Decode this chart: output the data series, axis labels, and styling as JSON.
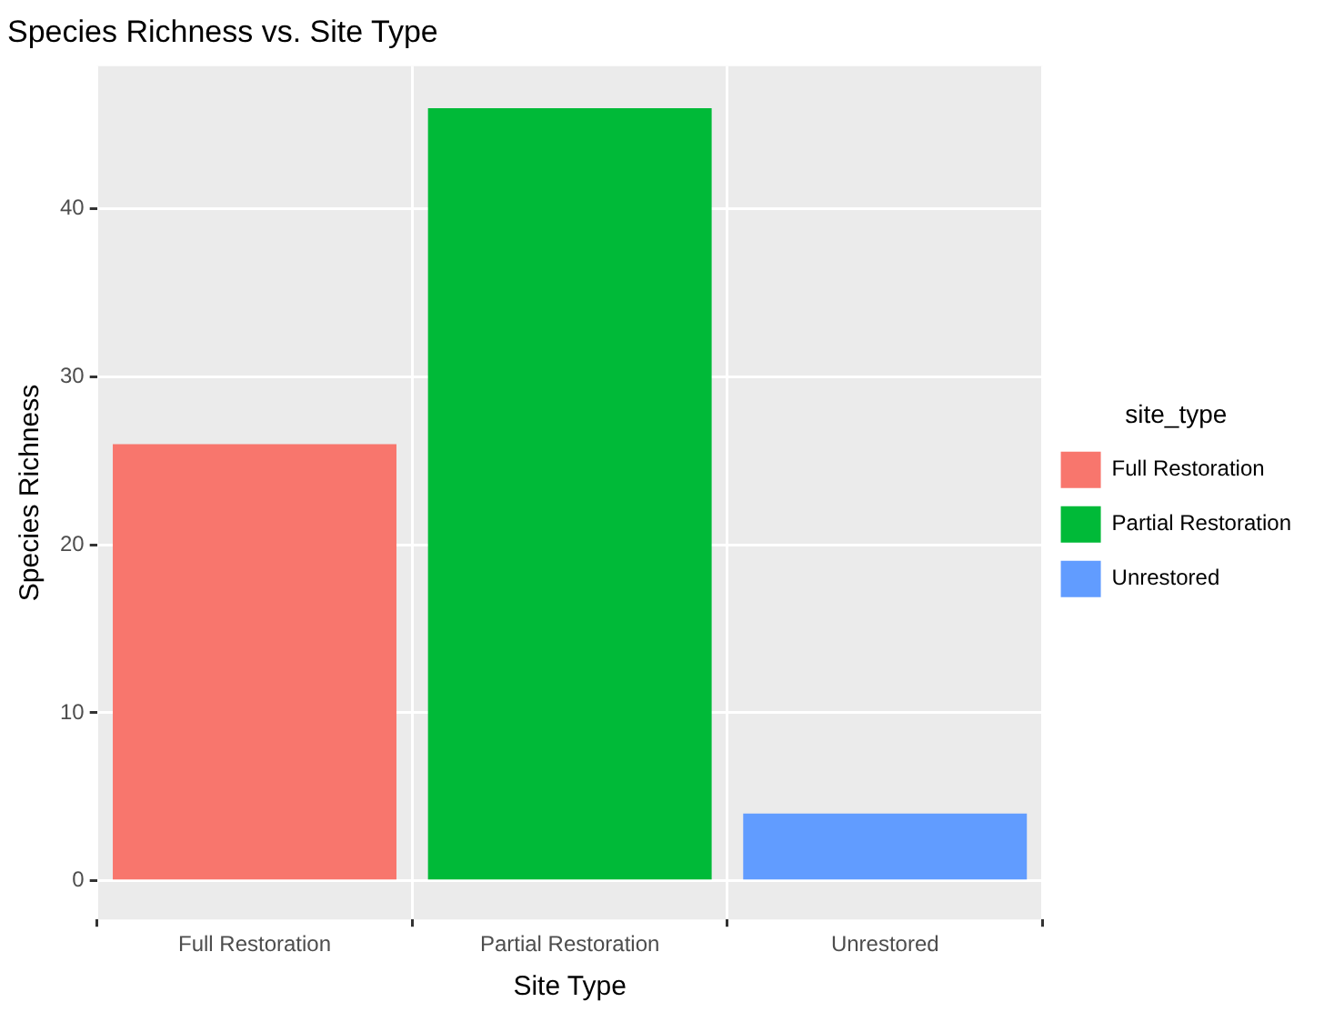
{
  "chart_data": {
    "type": "bar",
    "title": "Species Richness vs. Site Type",
    "xlabel": "Site Type",
    "ylabel": "Species Richness",
    "legend_title": "site_type",
    "categories": [
      "Full Restoration",
      "Partial Restoration",
      "Unrestored"
    ],
    "series": [
      {
        "name": "Full Restoration",
        "color": "#f8766d",
        "values": [
          26,
          null,
          null
        ]
      },
      {
        "name": "Partial Restoration",
        "color": "#00ba38",
        "values": [
          null,
          46,
          null
        ]
      },
      {
        "name": "Unrestored",
        "color": "#619cff",
        "values": [
          null,
          null,
          4
        ]
      }
    ],
    "ylim": [
      -2.3,
      48.5
    ],
    "yticks": [
      0,
      10,
      20,
      30,
      40
    ],
    "grid": true,
    "legend": "right"
  }
}
